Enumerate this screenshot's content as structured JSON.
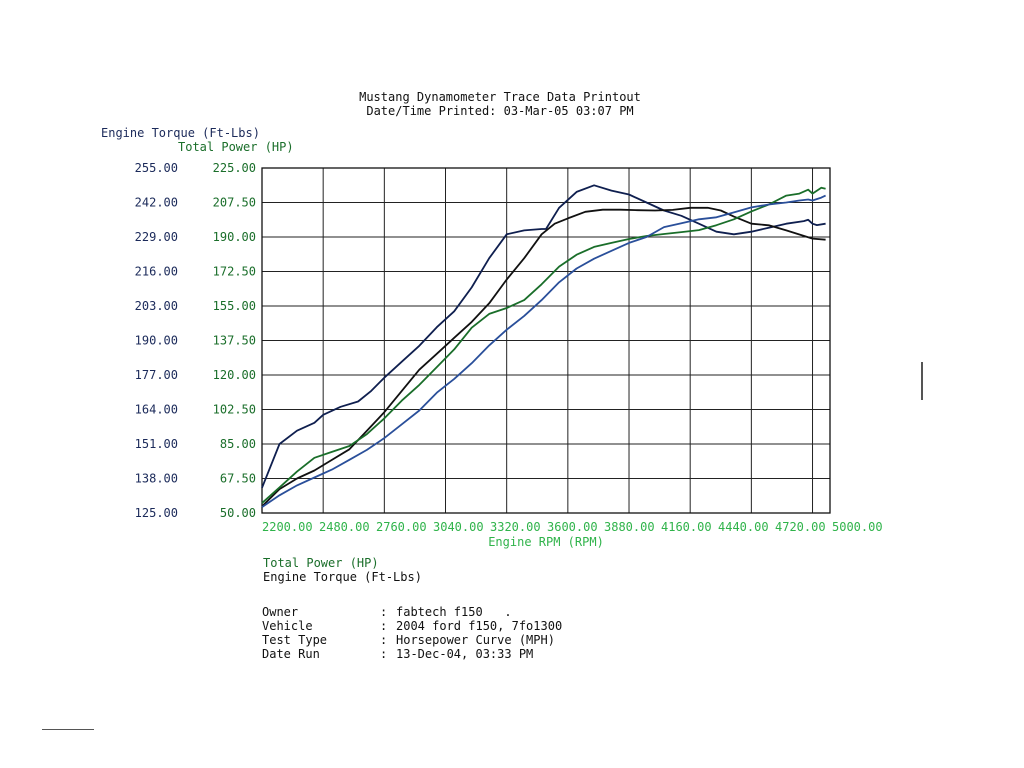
{
  "header": {
    "title": "Mustang Dynamometer Trace Data Printout",
    "printed_label": "Date/Time Printed: 03-Mar-05 03:07 PM"
  },
  "legend": {
    "power": "Total Power (HP)",
    "torque": "Engine Torque (Ft-Lbs)"
  },
  "info": [
    {
      "key": "Owner",
      "sep": ":",
      "value": "fabtech f150   ."
    },
    {
      "key": "Vehicle",
      "sep": ":",
      "value": "2004 ford f150, 7fo1300"
    },
    {
      "key": "Test Type",
      "sep": ":",
      "value": "Horsepower Curve (MPH)"
    },
    {
      "key": "Date Run",
      "sep": ":",
      "value": "13-Dec-04, 03:33 PM"
    }
  ],
  "chart_data": {
    "type": "line",
    "title": "",
    "xlabel": "Engine RPM (RPM)",
    "ylabel_left": "Engine Torque (Ft-Lbs)",
    "ylabel_right": "Total Power (HP)",
    "xlim": [
      2200,
      5000
    ],
    "ylim_torque": [
      125,
      255
    ],
    "ylim_power": [
      50,
      225
    ],
    "x_ticks": [
      "2200.00",
      "2480.00",
      "2760.00",
      "3040.00",
      "3320.00",
      "3600.00",
      "3880.00",
      "4160.00",
      "4440.00",
      "4720.00",
      "5000.00"
    ],
    "torque_ticks": [
      "255.00",
      "242.00",
      "229.00",
      "216.00",
      "203.00",
      "190.00",
      "177.00",
      "164.00",
      "151.00",
      "138.00",
      "125.00"
    ],
    "power_ticks": [
      "225.00",
      "207.50",
      "190.00",
      "172.50",
      "155.00",
      "137.50",
      "120.00",
      "102.50",
      "85.00",
      "67.50",
      "50.00"
    ],
    "grid": true,
    "colors": {
      "torque_a": "#0f1f4f",
      "torque_b": "#111111",
      "power_a": "#1a6e2a",
      "power_b": "#2a4f9a",
      "axis_x": "#2fb34a",
      "axis_power": "#1a6e2a",
      "axis_torque": "#1b2a5a"
    },
    "series": [
      {
        "axis": "torque",
        "color": "#0f1f4f",
        "x": [
          2200,
          2280,
          2360,
          2440,
          2480,
          2560,
          2640,
          2700,
          2760,
          2840,
          2920,
          3000,
          3080,
          3160,
          3240,
          3320,
          3400,
          3480,
          3500,
          3560,
          3640,
          3720,
          3800,
          3880,
          3960,
          4040,
          4120,
          4200,
          4280,
          4360,
          4440,
          4520,
          4600,
          4680,
          4700,
          4720,
          4740,
          4780
        ],
        "y": [
          134.5,
          151,
          156,
          159,
          162,
          165,
          167,
          171,
          176,
          182,
          188,
          195,
          201,
          210,
          221,
          230,
          231.5,
          232,
          232,
          240,
          246,
          248.5,
          246.5,
          245,
          242,
          239,
          237,
          234,
          231,
          230,
          231,
          232.5,
          234,
          235,
          235.5,
          234,
          233.5,
          234
        ]
      },
      {
        "axis": "torque",
        "color": "#111111",
        "x": [
          2200,
          2280,
          2360,
          2440,
          2520,
          2600,
          2680,
          2760,
          2840,
          2920,
          3000,
          3080,
          3160,
          3240,
          3320,
          3400,
          3480,
          3540,
          3600,
          3680,
          3760,
          3840,
          3920,
          4000,
          4080,
          4160,
          4240,
          4300,
          4360,
          4440,
          4520,
          4600,
          4680,
          4720,
          4780
        ],
        "y": [
          127.5,
          134,
          138,
          141,
          145,
          149,
          156,
          163,
          171,
          179,
          185,
          191,
          197,
          204,
          213,
          221,
          230,
          234,
          236,
          238.5,
          239.3,
          239.3,
          239.1,
          239,
          239.2,
          240,
          240,
          239,
          236.7,
          234,
          233.4,
          231.5,
          229.4,
          228.4,
          228
        ]
      },
      {
        "axis": "power",
        "color": "#1a6e2a",
        "x": [
          2200,
          2280,
          2360,
          2440,
          2520,
          2600,
          2680,
          2760,
          2840,
          2920,
          3000,
          3080,
          3160,
          3240,
          3320,
          3400,
          3480,
          3560,
          3640,
          3720,
          3800,
          3880,
          3960,
          4040,
          4120,
          4200,
          4280,
          4360,
          4440,
          4520,
          4600,
          4660,
          4700,
          4720,
          4760,
          4780
        ],
        "y": [
          55,
          63,
          71,
          78,
          81,
          84,
          90,
          98,
          107,
          115,
          124,
          133,
          144,
          151,
          154,
          158,
          166,
          175,
          181,
          185,
          187,
          189,
          190.5,
          191.5,
          192.5,
          193.5,
          196,
          199,
          203,
          206.5,
          211,
          212,
          214,
          212,
          215,
          214.5
        ]
      },
      {
        "axis": "power",
        "color": "#2a4f9a",
        "x": [
          2200,
          2280,
          2360,
          2440,
          2520,
          2600,
          2680,
          2760,
          2840,
          2920,
          3000,
          3080,
          3160,
          3240,
          3320,
          3400,
          3480,
          3560,
          3640,
          3720,
          3800,
          3880,
          3960,
          4040,
          4120,
          4200,
          4280,
          4360,
          4440,
          4520,
          4600,
          4660,
          4700,
          4720,
          4760,
          4780
        ],
        "y": [
          53,
          59,
          64,
          68,
          72,
          77,
          82,
          88,
          95,
          102,
          111,
          118,
          126,
          135,
          143,
          150,
          158,
          167,
          174,
          179,
          183,
          187,
          190,
          195,
          197,
          199,
          200,
          202.5,
          205,
          206.5,
          207.5,
          208.5,
          209,
          208.5,
          210,
          211
        ]
      }
    ]
  }
}
